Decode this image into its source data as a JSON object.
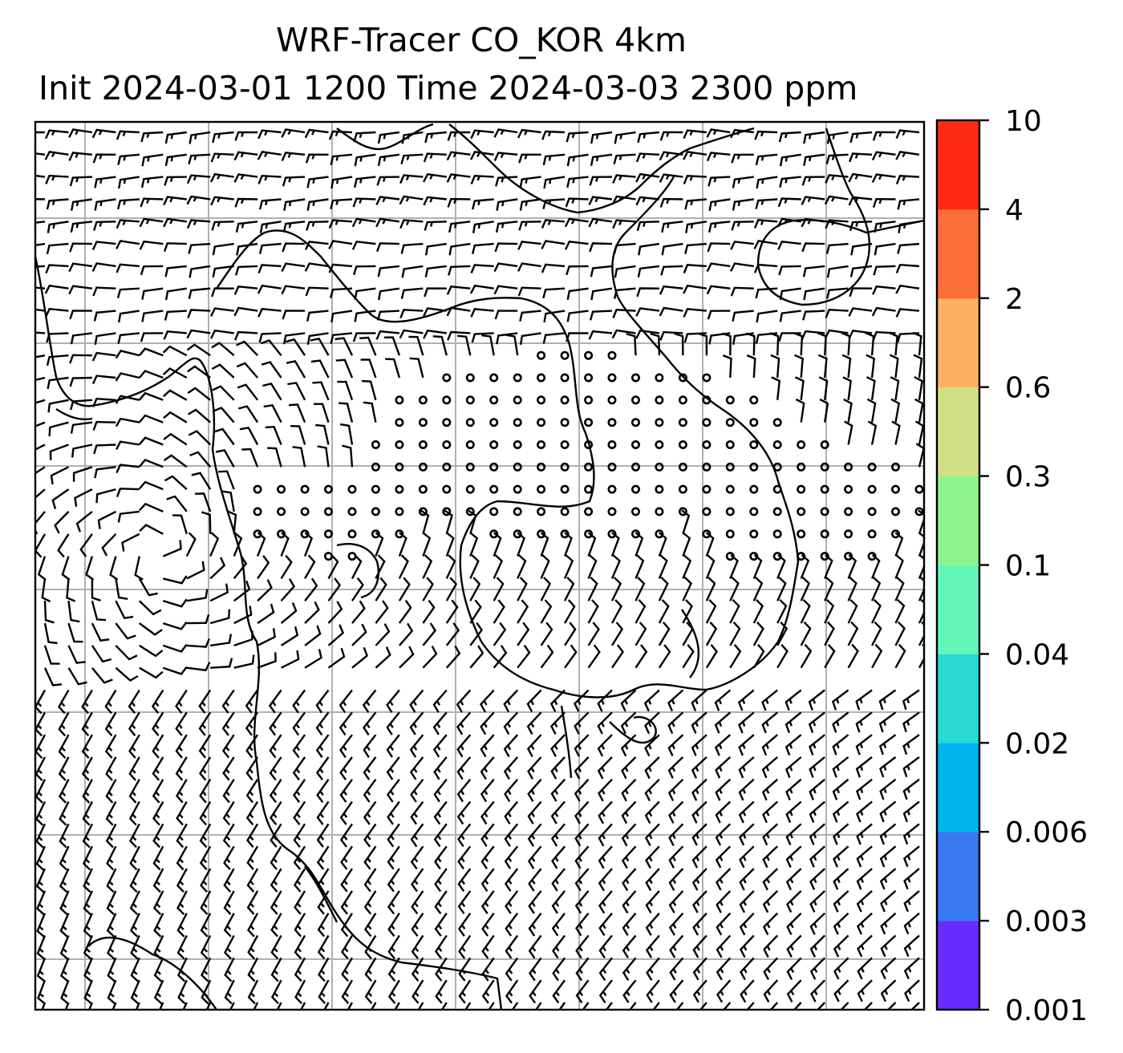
{
  "title": {
    "line1": "WRF-Tracer CO_KOR 4km",
    "line2": "Init 2024-03-01 1200 Time 2024-03-03 2300 ppm"
  },
  "map": {
    "content": "wind barbs and coastlines; calm (circle) markers in central domain",
    "gridlines": true
  },
  "colorbar": {
    "levels": [
      "0.001",
      "0.003",
      "0.006",
      "0.02",
      "0.04",
      "0.1",
      "0.3",
      "0.6",
      "2",
      "4",
      "10"
    ],
    "colors": [
      "#6a2bff",
      "#3a78f2",
      "#00b4ec",
      "#2ad9d1",
      "#62f7b9",
      "#8ef48f",
      "#d1e084",
      "#fdb060",
      "#fe6e38",
      "#ff2a14"
    ]
  }
}
